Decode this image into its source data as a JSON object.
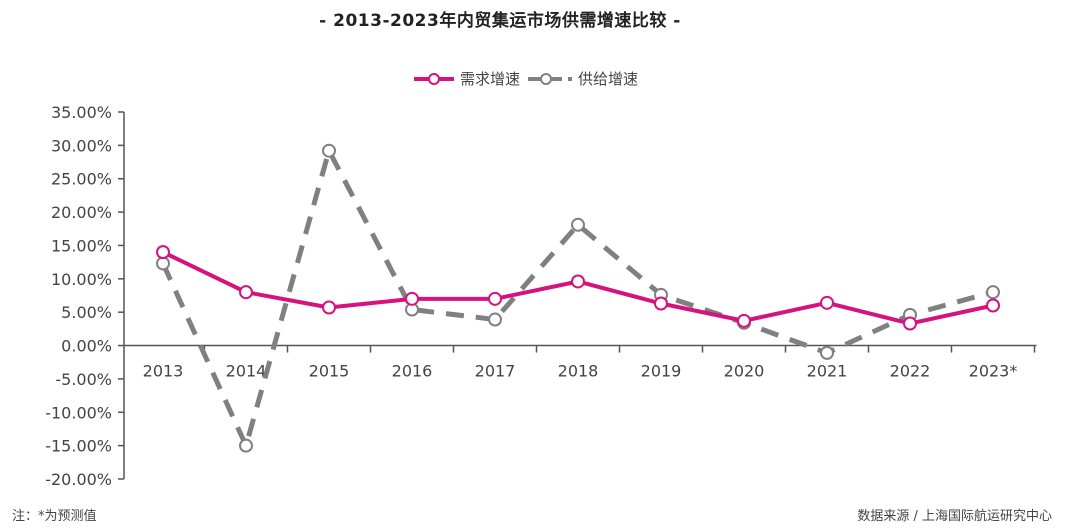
{
  "chart_data": {
    "type": "line",
    "title": "- 2013-2023年内贸集运市场供需增速比较 -",
    "xlabel": "",
    "ylabel": "",
    "categories": [
      "2013",
      "2014",
      "2015",
      "2016",
      "2017",
      "2018",
      "2019",
      "2020",
      "2021",
      "2022",
      "2023*"
    ],
    "series": [
      {
        "name": "需求增速",
        "color": "#d6127f",
        "style": "solid",
        "values": [
          14.0,
          8.0,
          5.7,
          7.0,
          7.0,
          9.6,
          6.3,
          3.7,
          6.4,
          3.3,
          6.0
        ]
      },
      {
        "name": "供给增速",
        "color": "#808080",
        "style": "dashed",
        "values": [
          12.3,
          -15.0,
          29.2,
          5.4,
          3.9,
          18.1,
          7.6,
          3.4,
          -1.1,
          4.6,
          8.0
        ]
      }
    ],
    "yticks": [
      "35.00%",
      "30.00%",
      "25.00%",
      "20.00%",
      "15.00%",
      "10.00%",
      "5.00%",
      "0.00%",
      "-5.00%",
      "-10.00%",
      "-15.00%",
      "-20.00%"
    ],
    "ylim": [
      -20,
      35
    ],
    "grid": false,
    "legend_position": "top-center"
  },
  "legend": {
    "demand_label": "需求增速",
    "supply_label": "供给增速"
  },
  "footer": {
    "note": "注：*为预测值",
    "source": "数据来源 / 上海国际航运研究中心"
  },
  "colors": {
    "demand": "#d6127f",
    "supply": "#808080",
    "axis": "#555555"
  }
}
